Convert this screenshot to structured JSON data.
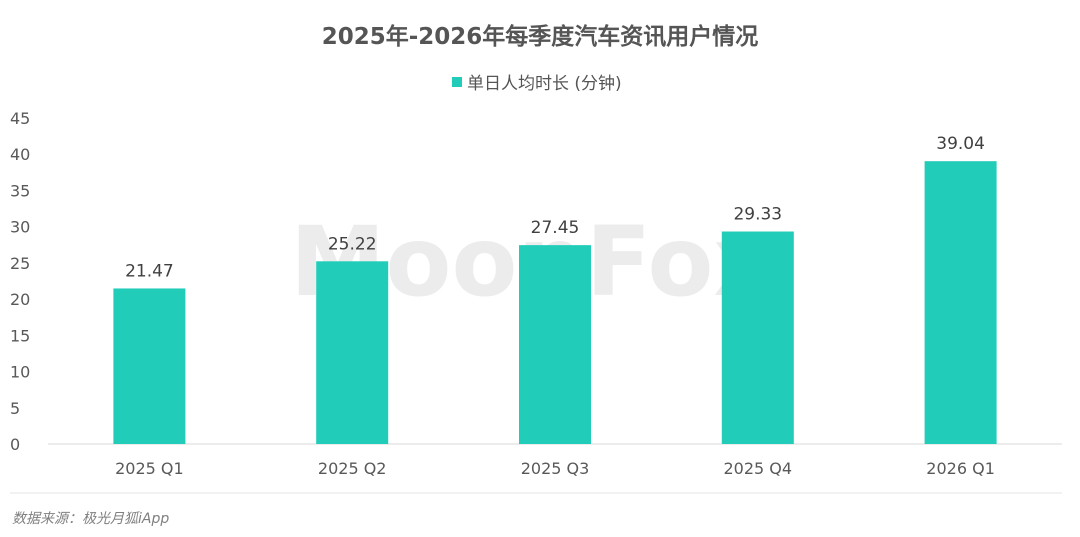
{
  "chart_data": {
    "type": "bar",
    "title": "2025年-2026年每季度汽车资讯用户情况",
    "categories": [
      "2025 Q1",
      "2025 Q2",
      "2025 Q3",
      "2025 Q4",
      "2026 Q1"
    ],
    "series": [
      {
        "name": "单日人均时长 (分钟)",
        "values": [
          21.47,
          25.22,
          27.45,
          29.33,
          39.04
        ],
        "color": "#21ccb9"
      }
    ],
    "value_labels": [
      "21.47",
      "25.22",
      "27.45",
      "29.33",
      "39.04"
    ],
    "y_ticks": [
      "0",
      "5",
      "10",
      "15",
      "20",
      "25",
      "30",
      "35",
      "40",
      "45"
    ],
    "ylim": [
      0,
      45
    ],
    "grid": false,
    "legend_position": "top-center",
    "axis_color": "#d9d9d9"
  },
  "source": "数据来源：极光月狐iApp",
  "watermark": "MoonFox"
}
